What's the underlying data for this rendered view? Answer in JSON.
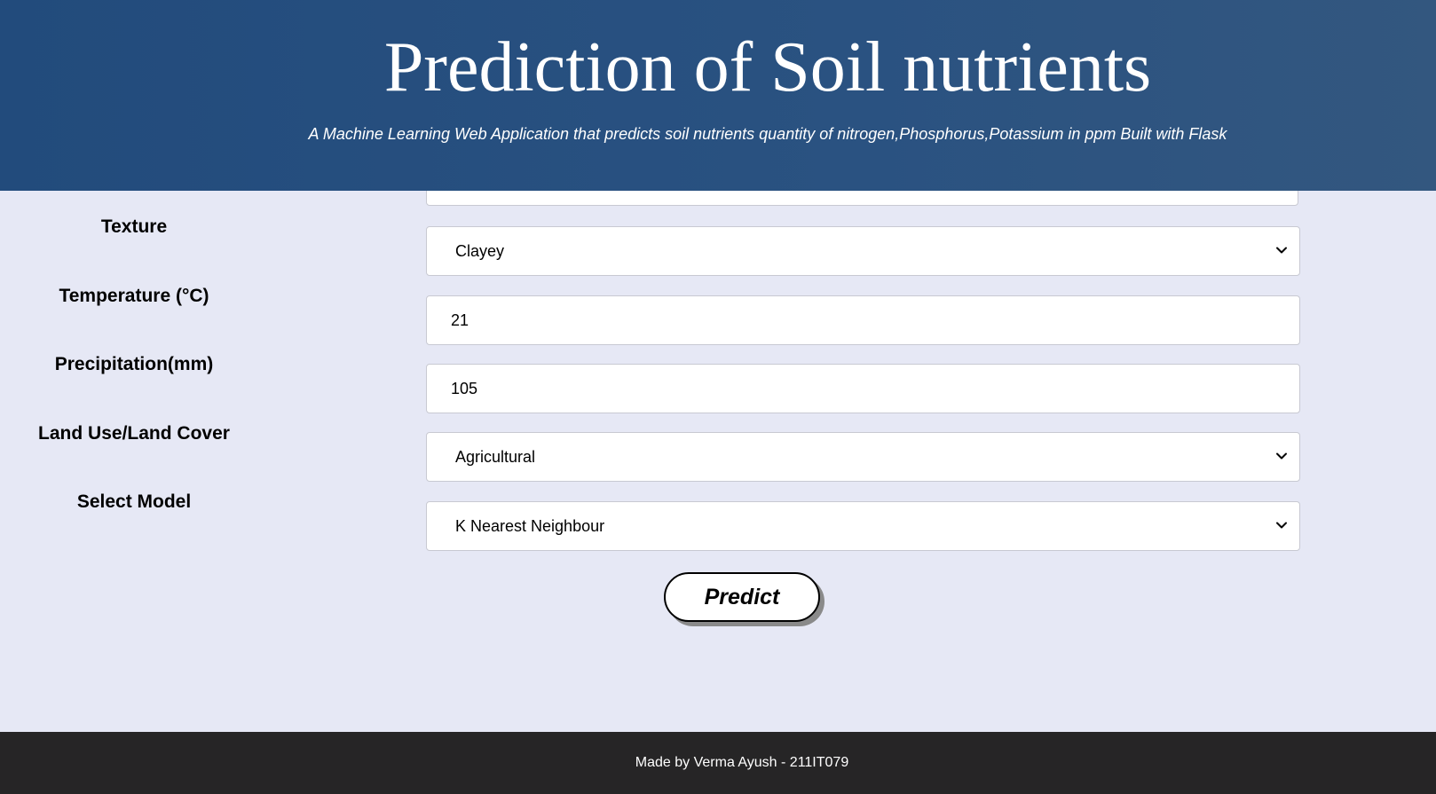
{
  "header": {
    "title": "Prediction of Soil nutrients",
    "subtitle": "A Machine Learning Web Application that predicts soil nutrients quantity of nitrogen,Phosphorus,Potassium in ppm Built with Flask"
  },
  "form": {
    "texture": {
      "label": "Texture",
      "value": "Clayey"
    },
    "temperature": {
      "label": "Temperature (°C)",
      "value": "21"
    },
    "precipitation": {
      "label": "Precipitation(mm)",
      "value": "105"
    },
    "land_use": {
      "label": "Land Use/Land Cover",
      "value": "Agricultural"
    },
    "model": {
      "label": "Select Model",
      "value": "K Nearest Neighbour"
    },
    "submit_label": "Predict"
  },
  "footer": {
    "credit": "Made by Verma Ayush - 211IT079"
  },
  "icons": {
    "select_arrow": "chevron-down-icon"
  },
  "colors": {
    "header_bg": "#224b7c",
    "page_bg": "#e6e8f5",
    "footer_bg": "#262526"
  }
}
